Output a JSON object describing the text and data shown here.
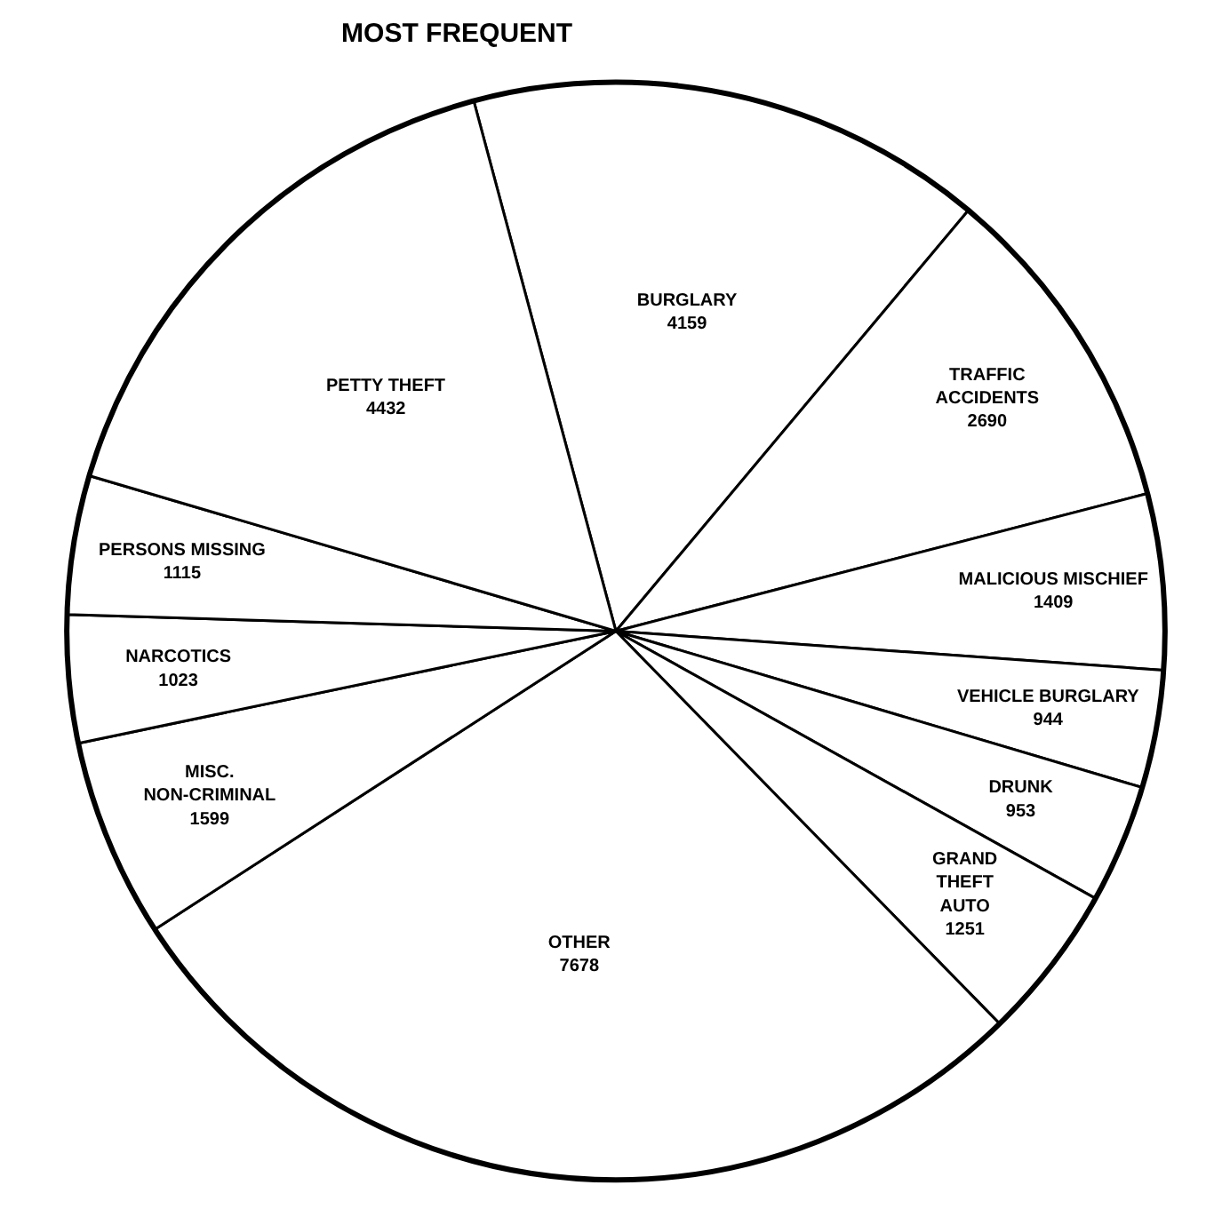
{
  "chart_data": {
    "type": "pie",
    "title": "MOST FREQUENT",
    "categories": [
      "BURGLARY",
      "TRAFFIC\nACCIDENTS",
      "MALICIOUS MISCHIEF",
      "VEHICLE BURGLARY",
      "DRUNK",
      "GRAND\nTHEFT\nAUTO",
      "OTHER",
      "MISC.\nNON-CRIMINAL",
      "NARCOTICS",
      "PERSONS MISSING",
      "PETTY THEFT"
    ],
    "values": [
      4159,
      2690,
      1409,
      944,
      953,
      1251,
      7678,
      1599,
      1023,
      1115,
      4432
    ],
    "colors": [
      "#ffffff",
      "#ffffff",
      "#ffffff",
      "#ffffff",
      "#ffffff",
      "#ffffff",
      "#ffffff",
      "#ffffff",
      "#ffffff",
      "#ffffff",
      "#ffffff"
    ],
    "data_labels": true
  }
}
